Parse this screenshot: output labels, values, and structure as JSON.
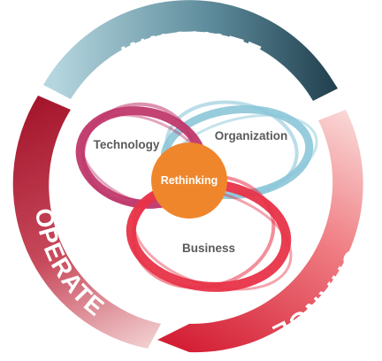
{
  "cycle": {
    "innovate": "INNOVATE",
    "change": "CHANGE",
    "operate": "OPERATE"
  },
  "loops": {
    "technology": "Technology",
    "organization": "Organization",
    "business": "Business"
  },
  "center": "Rethinking",
  "colors": {
    "innovate_start": "#9fc6d2",
    "innovate_end": "#2b4f60",
    "change_start": "#f7c3c1",
    "change_end": "#d72638",
    "operate_start": "#a8152b",
    "operate_end": "#f2c9c9",
    "technology": "#c0396b",
    "organization": "#8cc7d9",
    "business": "#e83348",
    "center": "#f0862c",
    "loop_text": "#5a5a5a"
  }
}
